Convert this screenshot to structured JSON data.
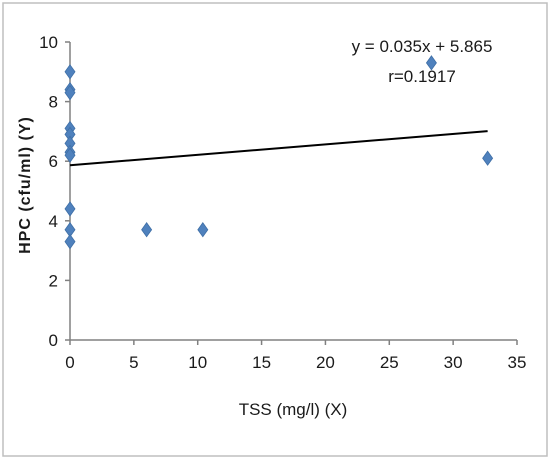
{
  "chart_data": {
    "type": "scatter",
    "title": "",
    "xlabel": "TSS (mg/l) (X)",
    "ylabel": "HPC (cfu/ml) (Y)",
    "xlim": [
      0,
      35
    ],
    "ylim": [
      0,
      10
    ],
    "x_ticks": [
      0,
      5,
      10,
      15,
      20,
      25,
      30,
      35
    ],
    "y_ticks": [
      0,
      2,
      4,
      6,
      8,
      10
    ],
    "grid": false,
    "marker": "diamond",
    "point_color": "#4f81bd",
    "line_color": "#000000",
    "series": [
      {
        "points": [
          {
            "x": 0,
            "y": 9.0
          },
          {
            "x": 0,
            "y": 8.4
          },
          {
            "x": 0,
            "y": 8.3
          },
          {
            "x": 0,
            "y": 7.1
          },
          {
            "x": 0,
            "y": 6.9
          },
          {
            "x": 0,
            "y": 6.6
          },
          {
            "x": 0,
            "y": 6.3
          },
          {
            "x": 0,
            "y": 6.2
          },
          {
            "x": 0,
            "y": 4.4
          },
          {
            "x": 0,
            "y": 3.7
          },
          {
            "x": 0,
            "y": 3.3
          },
          {
            "x": 6.0,
            "y": 3.7
          },
          {
            "x": 10.4,
            "y": 3.7
          },
          {
            "x": 28.3,
            "y": 9.3
          },
          {
            "x": 32.7,
            "y": 6.1
          }
        ]
      }
    ],
    "trendline": {
      "slope": 0.035,
      "intercept": 5.865,
      "x_range": [
        0,
        32.7
      ],
      "equation_label": "y = 0.035x + 5.865",
      "r_label": "r=0.1917"
    }
  }
}
